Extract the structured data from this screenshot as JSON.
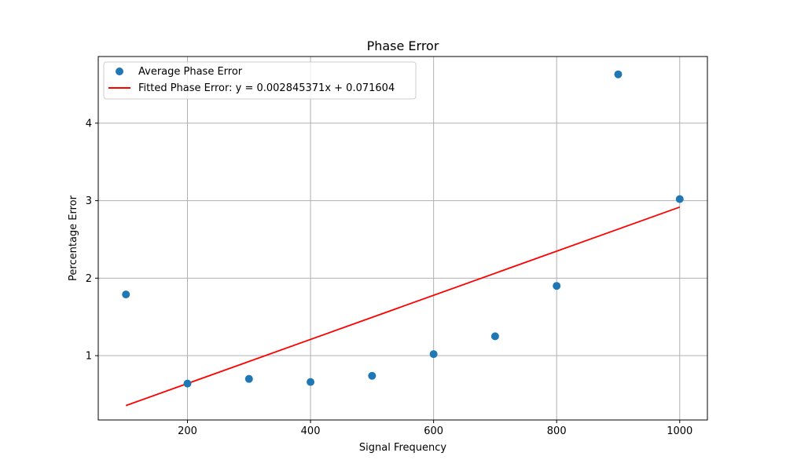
{
  "chart_data": {
    "type": "scatter",
    "title": "Phase Error",
    "xlabel": "Signal Frequency",
    "ylabel": "Percentage Error",
    "xlim": [
      55,
      1045
    ],
    "ylim": [
      0.17,
      4.86
    ],
    "xticks": [
      200,
      400,
      600,
      800,
      1000
    ],
    "yticks": [
      1,
      2,
      3,
      4
    ],
    "grid": true,
    "legend_position": "upper-left",
    "series": [
      {
        "name": "Average Phase Error",
        "kind": "scatter",
        "color": "#1f77b4",
        "x": [
          100,
          200,
          300,
          400,
          500,
          600,
          700,
          800,
          900,
          1000
        ],
        "y": [
          1.79,
          0.64,
          0.7,
          0.66,
          0.74,
          1.02,
          1.25,
          1.9,
          4.63,
          3.02
        ]
      },
      {
        "name": "Fitted Phase Error: y = 0.002845371x + 0.071604",
        "kind": "line",
        "color": "#ff0000",
        "x": [
          100,
          1000
        ],
        "y": [
          0.356,
          2.917
        ]
      }
    ]
  }
}
